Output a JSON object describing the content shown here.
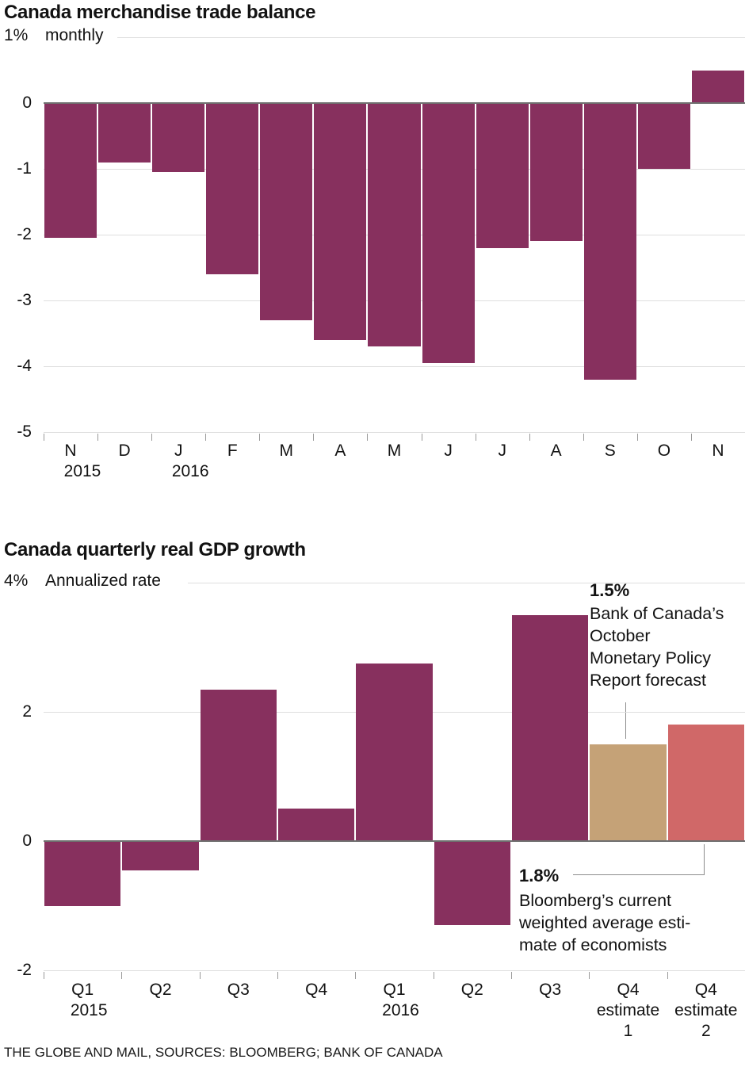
{
  "page": {
    "source_line": "THE GLOBE AND MAIL, SOURCES: BLOOMBERG; BANK OF CANADA"
  },
  "colors": {
    "bar_magenta": "#87305e",
    "bar_tan": "#c5a277",
    "bar_salmon": "#d06868",
    "gridline": "#dedede",
    "zero_line": "#6f6f6f",
    "leader_line": "#8c8c8c",
    "text": "#121212"
  },
  "chart_data": [
    {
      "type": "bar",
      "title": "Canada merchandise trade balance",
      "unit_label": "1%",
      "subtitle": "monthly",
      "categories": [
        "N",
        "D",
        "J",
        "F",
        "M",
        "A",
        "M",
        "J",
        "J",
        "A",
        "S",
        "O",
        "N"
      ],
      "year_labels": [
        {
          "label": "2015",
          "bar_index": 0
        },
        {
          "label": "2016",
          "bar_index": 2
        }
      ],
      "values": [
        -2.05,
        -0.9,
        -1.05,
        -2.6,
        -3.3,
        -3.6,
        -3.7,
        -3.95,
        -2.2,
        -2.1,
        -4.2,
        -1.0,
        0.5
      ],
      "bar_color": "#87305e",
      "ylim": [
        -5,
        1
      ],
      "yticks": [
        0,
        -1,
        -2,
        -3,
        -4,
        -5
      ],
      "subtitle_gridline_value": 1,
      "grid": true,
      "legend": false,
      "xlabel": "",
      "ylabel": "% monthly"
    },
    {
      "type": "bar",
      "title": "Canada quarterly real GDP growth",
      "unit_label": "4%",
      "subtitle": "Annualized rate",
      "categories": [
        "Q1",
        "Q2",
        "Q3",
        "Q4",
        "Q1",
        "Q2",
        "Q3",
        "Q4",
        "Q4"
      ],
      "year_labels": [
        {
          "label": "2015",
          "bar_index": 0
        },
        {
          "label": "2016",
          "bar_index": 4
        }
      ],
      "sub_labels": [
        {
          "bar_index": 7,
          "line1": "estimate",
          "line2": "1"
        },
        {
          "bar_index": 8,
          "line1": "estimate",
          "line2": "2"
        }
      ],
      "values": [
        -1.0,
        -0.45,
        2.35,
        0.5,
        2.75,
        -1.3,
        3.5,
        1.5,
        1.8
      ],
      "bar_colors": [
        "#87305e",
        "#87305e",
        "#87305e",
        "#87305e",
        "#87305e",
        "#87305e",
        "#87305e",
        "#c5a277",
        "#d06868"
      ],
      "ylim": [
        -2,
        4
      ],
      "yticks": [
        2,
        0,
        -2
      ],
      "subtitle_gridline_value": 4,
      "grid": true,
      "legend": false,
      "xlabel": "",
      "ylabel": "% annualized rate",
      "annotations": [
        {
          "value_label": "1.5%",
          "lines": [
            "Bank of Canada’s",
            "October",
            "Monetary Policy",
            "Report forecast"
          ],
          "points_to": "Q4 estimate 1"
        },
        {
          "value_label": "1.8%",
          "lines": [
            "Bloomberg’s current",
            "weighted average esti-",
            "mate of economists"
          ],
          "points_to": "Q4 estimate 2"
        }
      ]
    }
  ]
}
